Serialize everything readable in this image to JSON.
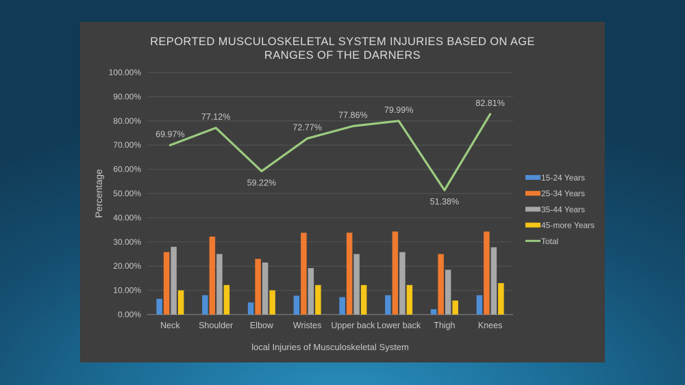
{
  "chart_data": {
    "type": "bar",
    "title_lines": [
      "REPORTED MUSCULOSKELETAL SYSTEM INJURIES BASED ON AGE",
      "RANGES OF THE DARNERS"
    ],
    "xlabel": "local Injuries of Musculoskeletal System",
    "ylabel": "Percentage",
    "ylim": [
      0,
      100
    ],
    "y_ticks": [
      "0.00%",
      "10.00%",
      "20.00%",
      "30.00%",
      "40.00%",
      "50.00%",
      "60.00%",
      "70.00%",
      "80.00%",
      "90.00%",
      "100.00%"
    ],
    "categories": [
      "Neck",
      "Shoulder",
      "Elbow",
      "Wristes",
      "Upper back",
      "Lower back",
      "Thigh",
      "Knees"
    ],
    "grid": "horizontal",
    "legend_position": "right",
    "series": [
      {
        "name": "15-24 Years",
        "type": "bar",
        "color": "#4f8fd6",
        "values": [
          6.5,
          8.0,
          5.0,
          7.8,
          7.2,
          8.0,
          2.2,
          8.0
        ]
      },
      {
        "name": "25-34 Years",
        "type": "bar",
        "color": "#f07a30",
        "values": [
          25.8,
          32.2,
          23.0,
          33.8,
          33.8,
          34.3,
          25.0,
          34.3
        ]
      },
      {
        "name": "35-44 Years",
        "type": "bar",
        "color": "#a8a8a8",
        "values": [
          28.0,
          25.0,
          21.5,
          19.2,
          25.0,
          25.8,
          18.5,
          27.8
        ]
      },
      {
        "name": "45-more Years",
        "type": "bar",
        "color": "#f5c518",
        "values": [
          10.0,
          12.2,
          10.0,
          12.2,
          12.2,
          12.2,
          5.8,
          13.0
        ]
      },
      {
        "name": "Total",
        "type": "line",
        "color": "#9ccc80",
        "values": [
          69.97,
          77.12,
          59.22,
          72.77,
          77.86,
          79.99,
          51.38,
          82.81
        ]
      }
    ],
    "line_labels": [
      "69.97%",
      "77.12%",
      "59.22%",
      "72.77%",
      "77.86%",
      "79.99%",
      "51.38%",
      "82.81%"
    ]
  }
}
